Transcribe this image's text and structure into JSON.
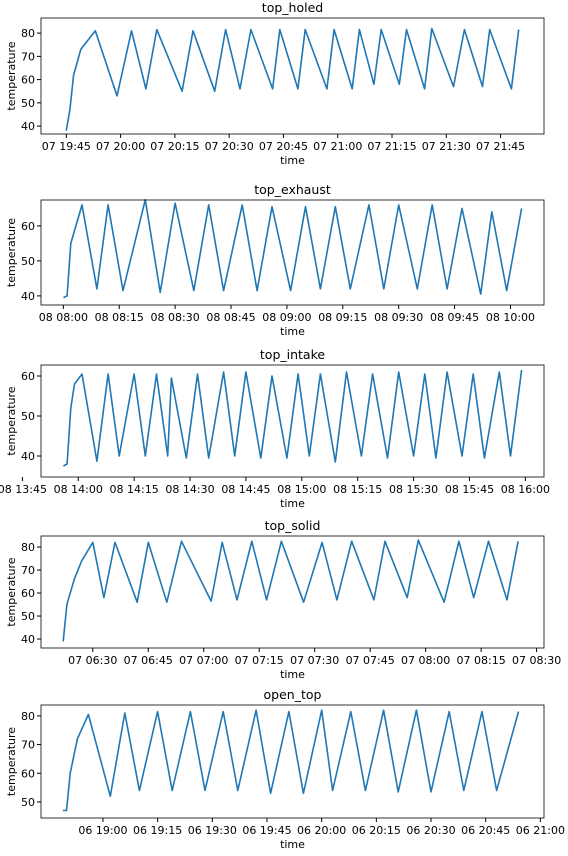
{
  "chart_data": [
    {
      "type": "line",
      "title": "top_holed",
      "xlabel": "time",
      "ylabel": "temperature",
      "color": "#1f77b4",
      "xlim": [
        "07 19:38",
        "07 21:57"
      ],
      "ylim": [
        36.6,
        86.5
      ],
      "yticks": [
        40,
        50,
        60,
        70,
        80
      ],
      "xticks": [
        "07 19:45",
        "07 20:00",
        "07 20:15",
        "07 20:30",
        "07 20:45",
        "07 21:00",
        "07 21:15",
        "07 21:30",
        "07 21:45"
      ],
      "x": [
        "07 19:45",
        "07 19:46",
        "07 19:47",
        "07 19:49",
        "07 19:53",
        "07 19:59",
        "07 20:03",
        "07 20:07",
        "07 20:10",
        "07 20:17",
        "07 20:20",
        "07 20:26",
        "07 20:29",
        "07 20:33",
        "07 20:36",
        "07 20:42",
        "07 20:44",
        "07 20:49",
        "07 20:51",
        "07 20:57",
        "07 20:59",
        "07 21:04",
        "07 21:06",
        "07 21:10",
        "07 21:12",
        "07 21:17",
        "07 21:19",
        "07 21:24",
        "07 21:26",
        "07 21:32",
        "07 21:35",
        "07 21:40",
        "07 21:42",
        "07 21:48",
        "07 21:50"
      ],
      "values": [
        38,
        47,
        62,
        73,
        81,
        53,
        81,
        56,
        81.5,
        55,
        81,
        55,
        81.5,
        56,
        81.5,
        56,
        81.5,
        56,
        81.5,
        56,
        81.5,
        56,
        81.5,
        58,
        81.5,
        58,
        81.5,
        56,
        82,
        57,
        81.5,
        57,
        81.5,
        56,
        81.5
      ]
    },
    {
      "type": "line",
      "title": "top_exhaust",
      "xlabel": "time",
      "ylabel": "temperature",
      "color": "#1f77b4",
      "xlim": [
        "08 07:54",
        "08 10:09"
      ],
      "ylim": [
        37.4,
        67.4
      ],
      "yticks": [
        40,
        50,
        60
      ],
      "xticks": [
        "08 08:00",
        "08 08:15",
        "08 08:30",
        "08 08:45",
        "08 09:00",
        "08 09:15",
        "08 09:30",
        "08 09:45",
        "08 10:00"
      ],
      "x": [
        "08 08:00",
        "08 08:01",
        "08 08:02",
        "08 08:05",
        "08 08:09",
        "08 08:12",
        "08 08:16",
        "08 08:22",
        "08 08:26",
        "08 08:30",
        "08 08:35",
        "08 08:39",
        "08 08:43",
        "08 08:48",
        "08 08:52",
        "08 08:56",
        "08 09:01",
        "08 09:05",
        "08 09:09",
        "08 09:13",
        "08 09:17",
        "08 09:22",
        "08 09:26",
        "08 09:30",
        "08 09:35",
        "08 09:39",
        "08 09:43",
        "08 09:47",
        "08 09:52",
        "08 09:55",
        "08 09:59",
        "08 10:03"
      ],
      "values": [
        39.5,
        40,
        55,
        66,
        42,
        66,
        41.5,
        67.5,
        41,
        66.5,
        41.5,
        66,
        41.5,
        66,
        41.5,
        65.5,
        41.5,
        65.5,
        42,
        65.5,
        42,
        66,
        42,
        66,
        42,
        66,
        42,
        65,
        40.5,
        64,
        41.5,
        65
      ]
    },
    {
      "type": "line",
      "title": "top_intake",
      "xlabel": "time",
      "ylabel": "temperature",
      "color": "#1f77b4",
      "xlim": [
        "08 13:50",
        "08 16:05"
      ],
      "ylim": [
        34.75,
        62.75
      ],
      "yticks": [
        40,
        50,
        60
      ],
      "xticks": [
        "08 13:45",
        "08 14:00",
        "08 14:15",
        "08 14:30",
        "08 14:45",
        "08 15:00",
        "08 15:15",
        "08 15:30",
        "08 15:45",
        "08 16:00"
      ],
      "x": [
        "08 13:56",
        "08 13:57",
        "08 13:58",
        "08 13:59",
        "08 14:01",
        "08 14:05",
        "08 14:08",
        "08 14:11",
        "08 14:15",
        "08 14:18",
        "08 14:21",
        "08 14:24",
        "08 14:25",
        "08 14:29",
        "08 14:32",
        "08 14:35",
        "08 14:39",
        "08 14:42",
        "08 14:45",
        "08 14:49",
        "08 14:52",
        "08 14:56",
        "08 14:59",
        "08 15:02",
        "08 15:05",
        "08 15:09",
        "08 15:12",
        "08 15:16",
        "08 15:19",
        "08 15:23",
        "08 15:26",
        "08 15:30",
        "08 15:33",
        "08 15:36",
        "08 15:39",
        "08 15:43",
        "08 15:46",
        "08 15:49",
        "08 15:53",
        "08 15:56",
        "08 15:59"
      ],
      "values": [
        37.5,
        38,
        52,
        58,
        60.5,
        38.7,
        60.5,
        40,
        60.5,
        40,
        60.5,
        40,
        59.5,
        39.5,
        60.5,
        39.5,
        61,
        40,
        61,
        39.5,
        60,
        39.5,
        60.5,
        40,
        60.5,
        38.5,
        61,
        40,
        60.5,
        39.5,
        61,
        40,
        60.5,
        39.5,
        61,
        40,
        60.5,
        39.5,
        61,
        40,
        61.5
      ]
    },
    {
      "type": "line",
      "title": "top_solid",
      "xlabel": "time",
      "ylabel": "temperature",
      "color": "#1f77b4",
      "xlim": [
        "07 06:16",
        "07 08:32"
      ],
      "ylim": [
        36.1,
        84.8
      ],
      "yticks": [
        40,
        50,
        60,
        70,
        80
      ],
      "xticks": [
        "07 06:30",
        "07 06:45",
        "07 07:00",
        "07 07:15",
        "07 07:30",
        "07 07:45",
        "07 08:00",
        "07 08:15",
        "07 08:30"
      ],
      "x": [
        "07 06:22",
        "07 06:23",
        "07 06:25",
        "07 06:27",
        "07 06:30",
        "07 06:33",
        "07 06:36",
        "07 06:42",
        "07 06:45",
        "07 06:50",
        "07 06:54",
        "07 07:02",
        "07 07:05",
        "07 07:09",
        "07 07:13",
        "07 07:17",
        "07 07:21",
        "07 07:27",
        "07 07:32",
        "07 07:36",
        "07 07:40",
        "07 07:46",
        "07 07:49",
        "07 07:55",
        "07 07:58",
        "07 08:05",
        "07 08:09",
        "07 08:13",
        "07 08:17",
        "07 08:22",
        "07 08:25"
      ],
      "values": [
        39,
        55,
        66,
        74,
        82,
        58,
        82,
        56,
        82,
        56,
        82.5,
        56.5,
        82,
        57,
        82.5,
        57,
        82.5,
        56,
        82,
        57,
        82.5,
        57,
        82.5,
        58,
        83,
        56,
        82.5,
        58,
        82.5,
        57,
        82.5
      ]
    },
    {
      "type": "line",
      "title": "open_top",
      "xlabel": "time",
      "ylabel": "temperature",
      "color": "#1f77b4",
      "xlim": [
        "06 18:43",
        "06 21:01"
      ],
      "ylim": [
        44.4,
        83.8
      ],
      "yticks": [
        50,
        60,
        70,
        80
      ],
      "xticks": [
        "06 19:00",
        "06 19:15",
        "06 19:30",
        "06 19:45",
        "06 20:00",
        "06 20:15",
        "06 20:30",
        "06 20:45",
        "06 21:00"
      ],
      "x": [
        "06 18:49",
        "06 18:50",
        "06 18:51",
        "06 18:53",
        "06 18:56",
        "06 19:02",
        "06 19:06",
        "06 19:10",
        "06 19:15",
        "06 19:19",
        "06 19:24",
        "06 19:28",
        "06 19:33",
        "06 19:37",
        "06 19:42",
        "06 19:46",
        "06 19:51",
        "06 19:55",
        "06 20:00",
        "06 20:03",
        "06 20:08",
        "06 20:12",
        "06 20:17",
        "06 20:21",
        "06 20:26",
        "06 20:30",
        "06 20:35",
        "06 20:39",
        "06 20:44",
        "06 20:48",
        "06 20:54"
      ],
      "values": [
        47,
        47,
        60,
        72,
        80.5,
        52,
        81,
        54,
        81.5,
        54,
        81.5,
        54,
        81.5,
        54,
        82,
        53,
        81.5,
        53,
        82,
        54,
        81.5,
        54,
        82,
        53.5,
        82,
        53.5,
        81.5,
        54,
        81.5,
        54,
        81.5
      ]
    }
  ]
}
